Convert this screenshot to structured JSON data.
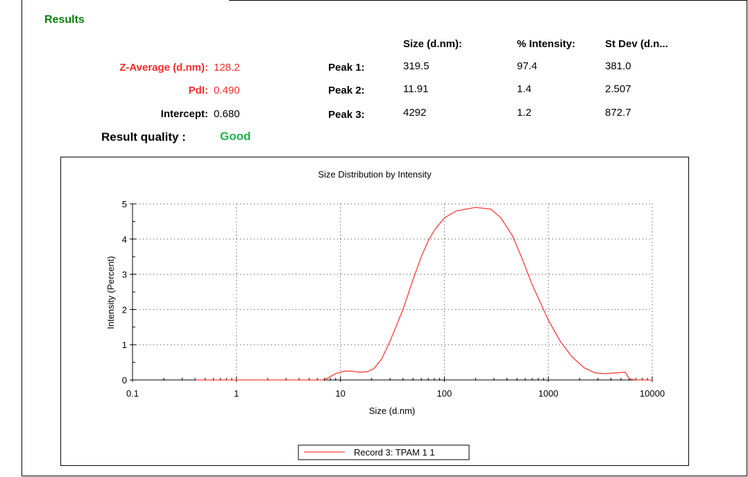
{
  "results_heading": "Results",
  "summary": {
    "z_average_label": "Z-Average (d.nm):",
    "z_average_value": "128.2",
    "pdi_label": "PdI:",
    "pdi_value": "0.490",
    "intercept_label": "Intercept:",
    "intercept_value": "0.680",
    "result_quality_label": "Result quality :",
    "result_quality_value": "Good"
  },
  "peaks_table": {
    "headers": [
      "Size (d.nm):",
      "% Intensity:",
      "St Dev (d.n..."
    ],
    "rows": [
      {
        "label": "Peak 1:",
        "size": "319.5",
        "intensity": "97.4",
        "stdev": "381.0"
      },
      {
        "label": "Peak 2:",
        "size": "11.91",
        "intensity": "1.4",
        "stdev": "2.507"
      },
      {
        "label": "Peak 3:",
        "size": "4292",
        "intensity": "1.2",
        "stdev": "872.7"
      }
    ]
  },
  "colors": {
    "heading": "#0b7a0b",
    "highlight": "#ff2a2a",
    "good": "#22b14c",
    "series": "#ff3b3b"
  },
  "chart_data": {
    "type": "line",
    "title": "Size Distribution by Intensity",
    "xlabel": "Size (d.nm)",
    "ylabel": "Intensity (Percent)",
    "x_scale": "log",
    "xlim": [
      0.1,
      10000
    ],
    "ylim": [
      0,
      5
    ],
    "x_ticks": [
      0.1,
      1,
      10,
      100,
      1000,
      10000
    ],
    "x_tick_labels": [
      "0.1",
      "1",
      "10",
      "100",
      "1000",
      "10000"
    ],
    "y_ticks": [
      0,
      1,
      2,
      3,
      4,
      5
    ],
    "y_tick_labels": [
      "0",
      "1",
      "2",
      "3",
      "4",
      "5"
    ],
    "grid": true,
    "legend_position": "bottom-center",
    "series": [
      {
        "name": "Record 3: TPAM 1 1",
        "color": "#ff3b3b",
        "points": [
          [
            0.4,
            0
          ],
          [
            1,
            0
          ],
          [
            3,
            0
          ],
          [
            6.8,
            0
          ],
          [
            7.5,
            0.05
          ],
          [
            9,
            0.18
          ],
          [
            11,
            0.25
          ],
          [
            13,
            0.25
          ],
          [
            15,
            0.22
          ],
          [
            18,
            0.23
          ],
          [
            21,
            0.32
          ],
          [
            25,
            0.6
          ],
          [
            30,
            1.1
          ],
          [
            40,
            2.0
          ],
          [
            50,
            2.85
          ],
          [
            60,
            3.5
          ],
          [
            70,
            3.95
          ],
          [
            80,
            4.25
          ],
          [
            100,
            4.6
          ],
          [
            130,
            4.8
          ],
          [
            200,
            4.9
          ],
          [
            280,
            4.85
          ],
          [
            350,
            4.6
          ],
          [
            450,
            4.1
          ],
          [
            550,
            3.5
          ],
          [
            700,
            2.7
          ],
          [
            1000,
            1.7
          ],
          [
            1300,
            1.1
          ],
          [
            1700,
            0.65
          ],
          [
            2200,
            0.35
          ],
          [
            2800,
            0.2
          ],
          [
            3500,
            0.18
          ],
          [
            4500,
            0.2
          ],
          [
            5500,
            0.22
          ],
          [
            6000,
            0.03
          ],
          [
            7000,
            0
          ],
          [
            10000,
            0
          ]
        ]
      }
    ]
  }
}
